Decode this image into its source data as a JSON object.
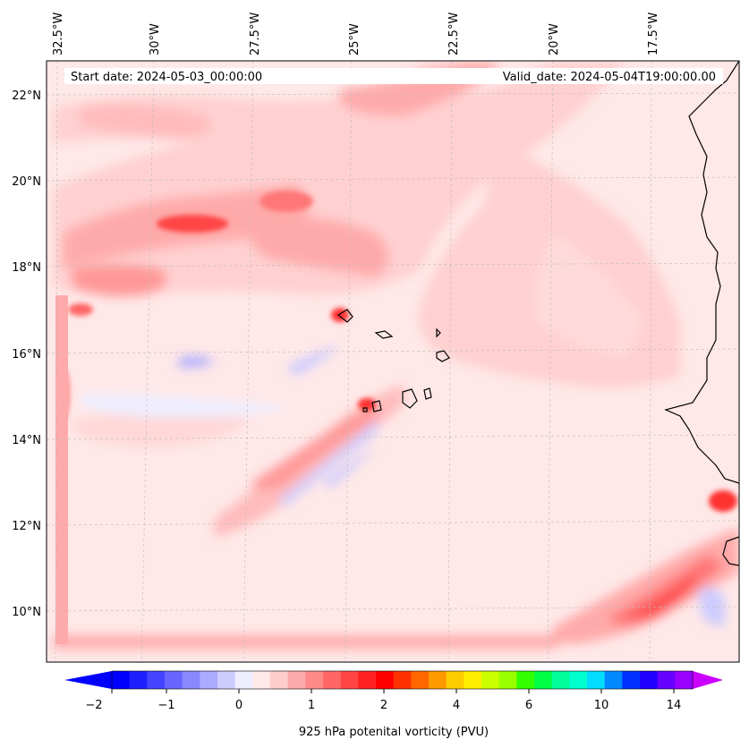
{
  "header": {
    "start_date": "Start date: 2024-05-03_00:00:00",
    "valid_date": "Valid_date: 2024-05-04T19:00:00.00"
  },
  "axes": {
    "lon_labels": [
      "32.5°W",
      "30°W",
      "27.5°W",
      "25°W",
      "22.5°W",
      "20°W",
      "17.5°W"
    ],
    "lat_labels": [
      "22°N",
      "20°N",
      "18°N",
      "16°N",
      "14°N",
      "12°N",
      "10°N"
    ]
  },
  "colorbar": {
    "label": "925 hPa potenital vorticity (PVU)",
    "tick_labels": [
      "−2",
      "−1",
      "0",
      "1",
      "2",
      "4",
      "6",
      "10",
      "14"
    ],
    "colors": [
      "#0000ff",
      "#2020ff",
      "#4444ff",
      "#6666ff",
      "#8888ff",
      "#aaaaff",
      "#ccccff",
      "#eeeeff",
      "#ffe8e8",
      "#ffcccc",
      "#ffaaaa",
      "#ff8888",
      "#ff6666",
      "#ff4444",
      "#ff2222",
      "#ff0000",
      "#ff3300",
      "#ff6600",
      "#ff9900",
      "#ffcc00",
      "#ffee00",
      "#ccff00",
      "#99ff00",
      "#33ff00",
      "#00ff44",
      "#00ff99",
      "#00ffcc",
      "#00ddff",
      "#0088ff",
      "#0033ff",
      "#2200ff",
      "#6600ff",
      "#9900ff"
    ],
    "min_color": "#0000ff",
    "max_color": "#cc00ff"
  },
  "palette": {
    "background": "#ffe8e8",
    "light": "#ffd0d0",
    "medium": "#ffaaaa",
    "strong": "#ff7777",
    "intense": "#ff3333",
    "negative_light": "#eeeeff",
    "negative": "#ccccff",
    "negative_strong": "#aaaaff"
  }
}
